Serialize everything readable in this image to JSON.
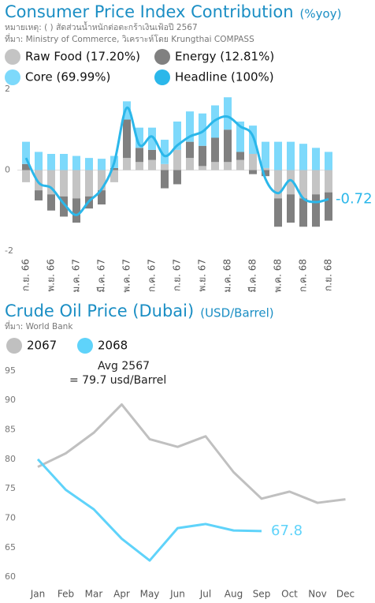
{
  "chart_data": [
    {
      "type": "bar",
      "stacked": true,
      "title": "Consumer Price Index Contribution",
      "subtitle": "(%yoy)",
      "note": "หมายเหตุ: ( ) สัดส่วนน้ำหนักต่อตะกร้าเงินเฟ้อปี 2567",
      "source": "ที่มา: Ministry of Commerce, วิเคราะห์โดย Krungthai COMPASS",
      "categories": [
        "ก.ย. 66",
        null,
        "พ.ย. 66",
        null,
        "ม.ค. 67",
        null,
        "มี.ค. 67",
        null,
        "พ.ค. 67",
        null,
        "ก.ค. 67",
        null,
        "ก.ย. 67",
        null,
        "พ.ย. 67",
        null,
        "ม.ค. 68",
        null,
        "มี.ค. 68",
        null,
        "พ.ค. 68",
        null,
        "ก.ค. 68",
        null,
        "ก.ย. 68"
      ],
      "series": [
        {
          "name": "Raw Food (17.20%)",
          "color": "#c4c4c4",
          "values": [
            -0.3,
            -0.5,
            -0.6,
            -0.65,
            -0.7,
            -0.65,
            -0.5,
            -0.3,
            0.3,
            0.2,
            0.25,
            0.15,
            0.5,
            0.3,
            0.1,
            0.2,
            0.2,
            0.25,
            0.4,
            0.05,
            -0.7,
            -0.6,
            -0.7,
            -0.6,
            -0.55
          ]
        },
        {
          "name": "Energy (12.81%)",
          "color": "#808080",
          "values": [
            0.15,
            -0.25,
            -0.4,
            -0.5,
            -0.6,
            -0.3,
            -0.35,
            0.05,
            0.95,
            0.35,
            0.25,
            -0.45,
            -0.35,
            0.4,
            0.5,
            0.6,
            0.8,
            0.2,
            -0.1,
            -0.15,
            -0.7,
            -0.7,
            -0.7,
            -0.8,
            -0.7
          ]
        },
        {
          "name": "Core (69.99%)",
          "color": "#7dd9fb",
          "values": [
            0.55,
            0.45,
            0.4,
            0.4,
            0.35,
            0.3,
            0.28,
            0.3,
            0.45,
            0.5,
            0.55,
            0.6,
            0.7,
            0.75,
            0.8,
            0.8,
            0.8,
            0.75,
            0.7,
            0.65,
            0.7,
            0.7,
            0.65,
            0.55,
            0.45
          ]
        },
        {
          "name": "Headline (100%)",
          "color": "#2bb7ea",
          "type": "line",
          "values": [
            0.3,
            -0.31,
            -0.44,
            -0.83,
            -1.11,
            -0.77,
            -0.47,
            0.19,
            1.54,
            0.62,
            0.83,
            0.35,
            0.61,
            0.83,
            0.95,
            1.23,
            1.32,
            1.08,
            0.84,
            -0.22,
            -0.57,
            -0.25,
            -0.7,
            -0.79,
            -0.72
          ]
        }
      ],
      "ylim": [
        -2,
        2
      ],
      "yticks": [
        2,
        0,
        -2
      ]
    },
    {
      "type": "line",
      "title": "Crude Oil Price (Dubai)",
      "subtitle": "(USD/Barrel)",
      "source": "ที่มา: World Bank",
      "annotation": [
        "Avg 2567",
        "= 79.7 usd/Barrel"
      ],
      "categories": [
        "Jan",
        "Feb",
        "Mar",
        "Apr",
        "May",
        "Jun",
        "Jul",
        "Aug",
        "Sep",
        "Oct",
        "Nov",
        "Dec"
      ],
      "series": [
        {
          "name": "2067",
          "color": "#c0c0c0",
          "values": [
            78.7,
            81,
            84.5,
            89.3,
            83.4,
            82.1,
            83.9,
            77.8,
            73.3,
            74.5,
            72.6,
            73.2
          ]
        },
        {
          "name": "2068",
          "color": "#5fd3fa",
          "values": [
            80,
            74.8,
            71.5,
            66.5,
            62.8,
            68.3,
            69,
            67.9,
            67.8,
            null,
            null,
            null
          ]
        }
      ],
      "ylim": [
        58,
        97
      ],
      "yticks": [
        60,
        65,
        70,
        75,
        80,
        85,
        90,
        95
      ]
    }
  ]
}
